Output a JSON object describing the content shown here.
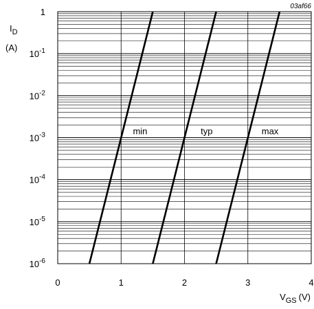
{
  "reference_code": "03af66",
  "chart_data": {
    "type": "line",
    "title": "",
    "xlabel": "V",
    "xlabel_sub": "GS",
    "xlabel_unit": "(V)",
    "ylabel": "I",
    "ylabel_sub": "D",
    "ylabel_unit": "(A)",
    "xlim": [
      0,
      4
    ],
    "ylim": [
      1e-06,
      1
    ],
    "yscale": "log",
    "grid": true,
    "x_ticks": [
      0,
      1,
      2,
      3,
      4
    ],
    "x_tick_labels": [
      "0",
      "1",
      "2",
      "3",
      "4"
    ],
    "y_ticks": [
      1e-06,
      1e-05,
      0.0001,
      0.001,
      0.01,
      0.1,
      1
    ],
    "y_tick_labels": [
      {
        "base": "10",
        "exp": "-6"
      },
      {
        "base": "10",
        "exp": "-5"
      },
      {
        "base": "10",
        "exp": "-4"
      },
      {
        "base": "10",
        "exp": "-3"
      },
      {
        "base": "10",
        "exp": "-2"
      },
      {
        "base": "10",
        "exp": "-1"
      },
      {
        "base": "1",
        "exp": ""
      }
    ],
    "series": [
      {
        "name": "min",
        "x": [
          0.5,
          1.0,
          1.5
        ],
        "y": [
          1e-06,
          0.001,
          1
        ]
      },
      {
        "name": "typ",
        "x": [
          1.5,
          2.0,
          2.5
        ],
        "y": [
          1e-06,
          0.001,
          1
        ]
      },
      {
        "name": "max",
        "x": [
          2.5,
          3.0,
          3.5
        ],
        "y": [
          1e-06,
          0.001,
          1
        ]
      }
    ],
    "annotations": [
      {
        "text": "min",
        "x": 1.3,
        "y": 0.001
      },
      {
        "text": "typ",
        "x": 2.35,
        "y": 0.001
      },
      {
        "text": "max",
        "x": 3.35,
        "y": 0.001
      }
    ]
  }
}
